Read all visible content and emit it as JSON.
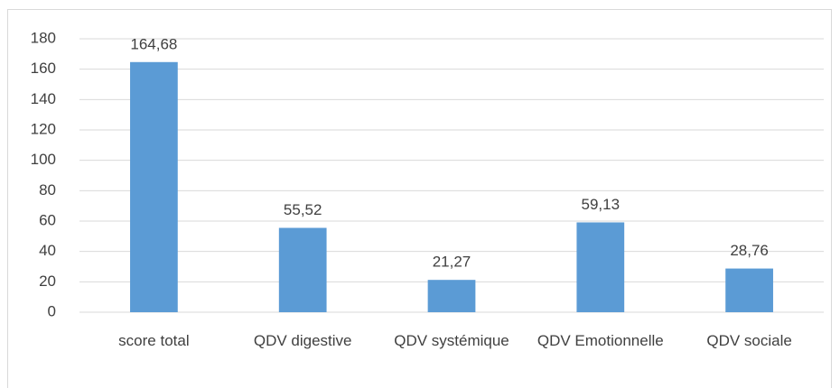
{
  "chart_data": {
    "type": "bar",
    "categories": [
      "score total",
      "QDV digestive",
      "QDV systémique",
      "QDV Emotionnelle",
      "QDV sociale"
    ],
    "values": [
      164.68,
      55.52,
      21.27,
      59.13,
      28.76
    ],
    "value_labels": [
      "164,68",
      "55,52",
      "21,27",
      "59,13",
      "28,76"
    ],
    "color": "#5b9bd5",
    "ylim": [
      0,
      180
    ],
    "yticks": [
      0,
      20,
      40,
      60,
      80,
      100,
      120,
      140,
      160,
      180
    ],
    "grid": true
  }
}
